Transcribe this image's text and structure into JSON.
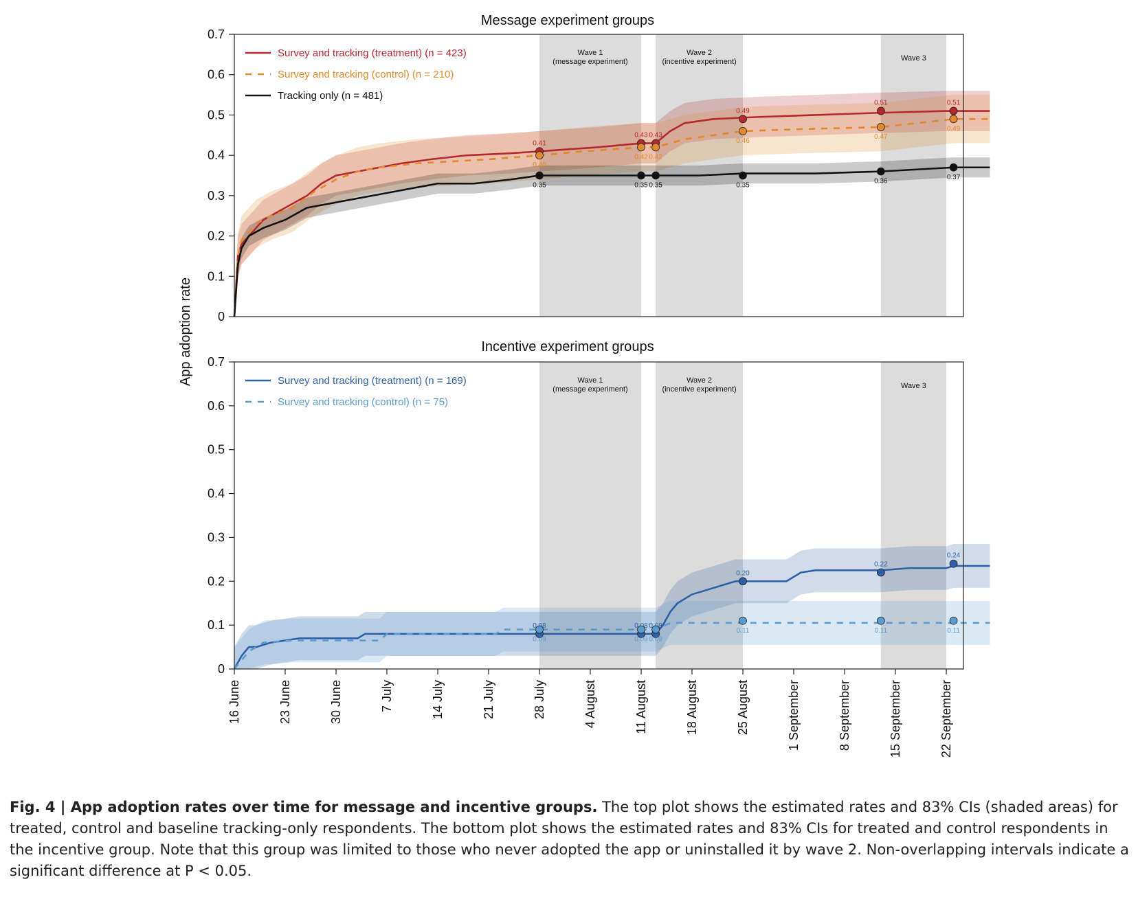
{
  "colors": {
    "treatment_red": "#b5282e",
    "control_orange": "#e08a2b",
    "tracking_black": "#111111",
    "treatment_blue": "#2f5fa6",
    "control_blue": "#5b9bd0",
    "wave_band": "#dcdcdc"
  },
  "ylabel": "App adoption rate",
  "x_ticks": [
    "16 June",
    "23 June",
    "30 June",
    "7 July",
    "14 July",
    "21 July",
    "28 July",
    "4 August",
    "11 August",
    "18 August",
    "25 August",
    "1 September",
    "8 September",
    "15 September",
    "22 September"
  ],
  "y_ticks": [
    "0",
    "0.1",
    "0.2",
    "0.3",
    "0.4",
    "0.5",
    "0.6",
    "0.7"
  ],
  "caption": {
    "label": "Fig. 4 | App adoption rates over time for message and incentive groups.",
    "text": " The top plot shows the estimated rates and 83% CIs (shaded areas) for treated, control and baseline tracking-only respondents. The bottom plot shows the estimated rates and 83% CIs for treated and control respondents in the incentive group. Note that this group was limited to those who never adopted the app or uninstalled it by wave 2. Non-overlapping intervals indicate a significant difference at P < 0.05."
  },
  "chart_data": [
    {
      "type": "line",
      "title": "Message experiment groups",
      "ylabel": "App adoption rate",
      "x_unit": "days since 16 June",
      "xlim": [
        "16 June",
        "23 September"
      ],
      "ylim": [
        0,
        0.7
      ],
      "grid": false,
      "legend_position": "top-left",
      "waves": [
        {
          "label": "Wave 1",
          "sub": "(message experiment)",
          "start": "28 July",
          "end": "11 August"
        },
        {
          "label": "Wave 2",
          "sub": "(incentive experiment)",
          "start": "13 August",
          "end": "25 August"
        },
        {
          "label": "Wave 3",
          "sub": "",
          "start": "13 September",
          "end": "22 September"
        }
      ],
      "series": [
        {
          "name": "Survey and tracking (treatment) (n = 423)",
          "color": "#b5282e",
          "dash": "solid",
          "points": [
            [
              0,
              0
            ],
            [
              0.5,
              0.15
            ],
            [
              1,
              0.18
            ],
            [
              2,
              0.2
            ],
            [
              3,
              0.22
            ],
            [
              4,
              0.24
            ],
            [
              6,
              0.26
            ],
            [
              8,
              0.28
            ],
            [
              10,
              0.3
            ],
            [
              12,
              0.33
            ],
            [
              14,
              0.35
            ],
            [
              17,
              0.36
            ],
            [
              20,
              0.37
            ],
            [
              23,
              0.38
            ],
            [
              27,
              0.39
            ],
            [
              32,
              0.4
            ],
            [
              38,
              0.405
            ],
            [
              42,
              0.41
            ],
            [
              46,
              0.415
            ],
            [
              50,
              0.42
            ],
            [
              56,
              0.43
            ],
            [
              58,
              0.43
            ],
            [
              60,
              0.46
            ],
            [
              62,
              0.48
            ],
            [
              66,
              0.49
            ],
            [
              72,
              0.495
            ],
            [
              80,
              0.5
            ],
            [
              88,
              0.505
            ],
            [
              98,
              0.51
            ],
            [
              104,
              0.51
            ]
          ],
          "ci": [
            0.05,
            0.05
          ],
          "markers": [
            {
              "x": 42,
              "y": 0.41,
              "label": "0.41"
            },
            {
              "x": 56,
              "y": 0.43,
              "label": "0.43"
            },
            {
              "x": 58,
              "y": 0.43,
              "label": "0.43"
            },
            {
              "x": 70,
              "y": 0.49,
              "label": "0.49"
            },
            {
              "x": 89,
              "y": 0.51,
              "label": "0.51"
            },
            {
              "x": 99,
              "y": 0.51,
              "label": "0.51"
            }
          ]
        },
        {
          "name": "Survey and tracking (control) (n = 210)",
          "color": "#e08a2b",
          "dash": "dashed",
          "points": [
            [
              0,
              0
            ],
            [
              0.5,
              0.15
            ],
            [
              1,
              0.19
            ],
            [
              2,
              0.21
            ],
            [
              3,
              0.23
            ],
            [
              5,
              0.25
            ],
            [
              8,
              0.27
            ],
            [
              11,
              0.31
            ],
            [
              14,
              0.34
            ],
            [
              17,
              0.36
            ],
            [
              20,
              0.37
            ],
            [
              25,
              0.38
            ],
            [
              30,
              0.385
            ],
            [
              35,
              0.39
            ],
            [
              42,
              0.4
            ],
            [
              48,
              0.41
            ],
            [
              56,
              0.42
            ],
            [
              58,
              0.42
            ],
            [
              62,
              0.44
            ],
            [
              66,
              0.45
            ],
            [
              70,
              0.46
            ],
            [
              78,
              0.465
            ],
            [
              89,
              0.47
            ],
            [
              99,
              0.49
            ],
            [
              104,
              0.49
            ]
          ],
          "ci": [
            0.06,
            0.06
          ],
          "markers": [
            {
              "x": 42,
              "y": 0.4,
              "label": "0.40"
            },
            {
              "x": 56,
              "y": 0.42,
              "label": "0.42"
            },
            {
              "x": 58,
              "y": 0.42,
              "label": "0.42"
            },
            {
              "x": 70,
              "y": 0.46,
              "label": "0.46"
            },
            {
              "x": 89,
              "y": 0.47,
              "label": "0.47"
            },
            {
              "x": 99,
              "y": 0.49,
              "label": "0.49"
            }
          ]
        },
        {
          "name": "Tracking only (n = 481)",
          "color": "#111111",
          "dash": "solid",
          "points": [
            [
              0,
              0
            ],
            [
              0.5,
              0.13
            ],
            [
              1,
              0.17
            ],
            [
              2,
              0.2
            ],
            [
              4,
              0.22
            ],
            [
              7,
              0.24
            ],
            [
              10,
              0.27
            ],
            [
              13,
              0.28
            ],
            [
              16,
              0.29
            ],
            [
              19,
              0.3
            ],
            [
              22,
              0.31
            ],
            [
              25,
              0.32
            ],
            [
              28,
              0.33
            ],
            [
              33,
              0.33
            ],
            [
              38,
              0.34
            ],
            [
              42,
              0.35
            ],
            [
              50,
              0.35
            ],
            [
              56,
              0.35
            ],
            [
              58,
              0.35
            ],
            [
              64,
              0.35
            ],
            [
              70,
              0.355
            ],
            [
              80,
              0.355
            ],
            [
              89,
              0.36
            ],
            [
              99,
              0.37
            ],
            [
              104,
              0.37
            ]
          ],
          "ci": [
            0.025,
            0.025
          ],
          "markers": [
            {
              "x": 42,
              "y": 0.35,
              "label": "0.35"
            },
            {
              "x": 56,
              "y": 0.35,
              "label": "0.35"
            },
            {
              "x": 58,
              "y": 0.35,
              "label": "0.35"
            },
            {
              "x": 70,
              "y": 0.35,
              "label": "0.35"
            },
            {
              "x": 89,
              "y": 0.36,
              "label": "0.36"
            },
            {
              "x": 99,
              "y": 0.37,
              "label": "0.37"
            }
          ]
        }
      ]
    },
    {
      "type": "line",
      "title": "Incentive experiment groups",
      "ylabel": "App adoption rate",
      "x_unit": "days since 16 June",
      "xlim": [
        "16 June",
        "23 September"
      ],
      "ylim": [
        0,
        0.7
      ],
      "grid": false,
      "legend_position": "top-left",
      "waves": [
        {
          "label": "Wave 1",
          "sub": "(message experiment)",
          "start": "28 July",
          "end": "11 August"
        },
        {
          "label": "Wave 2",
          "sub": "(incentive experiment)",
          "start": "13 August",
          "end": "25 August"
        },
        {
          "label": "Wave 3",
          "sub": "",
          "start": "13 September",
          "end": "22 September"
        }
      ],
      "series": [
        {
          "name": "Survey and tracking (treatment) (n = 169)",
          "color": "#2f5fa6",
          "dash": "solid",
          "points": [
            [
              0,
              0
            ],
            [
              1,
              0.03
            ],
            [
              2,
              0.05
            ],
            [
              3,
              0.05
            ],
            [
              5,
              0.06
            ],
            [
              7,
              0.065
            ],
            [
              9,
              0.07
            ],
            [
              13,
              0.07
            ],
            [
              17,
              0.07
            ],
            [
              18,
              0.08
            ],
            [
              24,
              0.08
            ],
            [
              30,
              0.08
            ],
            [
              38,
              0.08
            ],
            [
              42,
              0.08
            ],
            [
              56,
              0.08
            ],
            [
              58,
              0.08
            ],
            [
              59,
              0.1
            ],
            [
              60,
              0.13
            ],
            [
              61,
              0.15
            ],
            [
              63,
              0.17
            ],
            [
              65,
              0.18
            ],
            [
              67,
              0.19
            ],
            [
              69,
              0.2
            ],
            [
              76,
              0.2
            ],
            [
              78,
              0.22
            ],
            [
              80,
              0.225
            ],
            [
              89,
              0.225
            ],
            [
              93,
              0.23
            ],
            [
              98,
              0.23
            ],
            [
              99,
              0.235
            ],
            [
              104,
              0.235
            ]
          ],
          "ci": [
            0.05,
            0.05
          ],
          "markers": [
            {
              "x": 42,
              "y": 0.08,
              "label": "0.08"
            },
            {
              "x": 56,
              "y": 0.08,
              "label": "0.08"
            },
            {
              "x": 58,
              "y": 0.08,
              "label": "0.08"
            },
            {
              "x": 70,
              "y": 0.2,
              "label": "0.20"
            },
            {
              "x": 89,
              "y": 0.22,
              "label": "0.22"
            },
            {
              "x": 99,
              "y": 0.24,
              "label": "0.24"
            }
          ]
        },
        {
          "name": "Survey and tracking (control) (n = 75)",
          "color": "#5b9bd0",
          "dash": "dashed",
          "points": [
            [
              0,
              0
            ],
            [
              1,
              0.02
            ],
            [
              2,
              0.04
            ],
            [
              4,
              0.06
            ],
            [
              8,
              0.065
            ],
            [
              20,
              0.065
            ],
            [
              21,
              0.08
            ],
            [
              36,
              0.08
            ],
            [
              37,
              0.09
            ],
            [
              42,
              0.09
            ],
            [
              56,
              0.09
            ],
            [
              58,
              0.09
            ],
            [
              60,
              0.105
            ],
            [
              70,
              0.105
            ],
            [
              89,
              0.105
            ],
            [
              99,
              0.105
            ],
            [
              104,
              0.105
            ]
          ],
          "ci": [
            0.05,
            0.05
          ],
          "markers": [
            {
              "x": 42,
              "y": 0.09,
              "label": "0.09"
            },
            {
              "x": 56,
              "y": 0.09,
              "label": "0.09"
            },
            {
              "x": 58,
              "y": 0.09,
              "label": "0.09"
            },
            {
              "x": 70,
              "y": 0.11,
              "label": "0.11"
            },
            {
              "x": 89,
              "y": 0.11,
              "label": "0.11"
            },
            {
              "x": 99,
              "y": 0.11,
              "label": "0.11"
            }
          ]
        }
      ]
    }
  ]
}
